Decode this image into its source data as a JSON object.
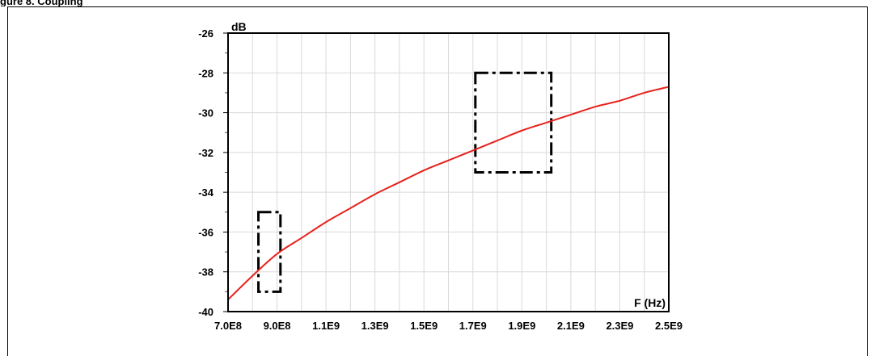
{
  "figure_title": "gure 8. Coupling",
  "chart_data": {
    "type": "line",
    "ylabel": "dB",
    "xlabel": "F (Hz)",
    "xlim": [
      700000000,
      2500000000
    ],
    "ylim": [
      -40,
      -26
    ],
    "x_ticks": [
      "7.0E8",
      "9.0E8",
      "1.1E9",
      "1.3E9",
      "1.5E9",
      "1.7E9",
      "1.9E9",
      "2.1E9",
      "2.3E9",
      "2.5E9"
    ],
    "y_ticks": [
      "-26",
      "-28",
      "-30",
      "-32",
      "-34",
      "-36",
      "-38",
      "-40"
    ],
    "grid": true,
    "series": [
      {
        "color": "#e8211c",
        "x": [
          700000000,
          800000000,
          900000000,
          1000000000,
          1100000000,
          1200000000,
          1300000000,
          1400000000,
          1500000000,
          1600000000,
          1700000000,
          1800000000,
          1900000000,
          2000000000,
          2100000000,
          2200000000,
          2300000000,
          2400000000,
          2500000000
        ],
        "y": [
          -39.4,
          -38.2,
          -37.1,
          -36.3,
          -35.5,
          -34.8,
          -34.1,
          -33.5,
          -32.9,
          -32.4,
          -31.9,
          -31.4,
          -30.9,
          -30.5,
          -30.1,
          -29.7,
          -29.4,
          -29.0,
          -28.7
        ]
      }
    ],
    "limit_boxes": [
      {
        "x": [
          824000000,
          914000000
        ],
        "y": [
          -39,
          -35
        ]
      },
      {
        "x": [
          1710000000,
          2020000000
        ],
        "y": [
          -33,
          -28
        ]
      }
    ]
  }
}
